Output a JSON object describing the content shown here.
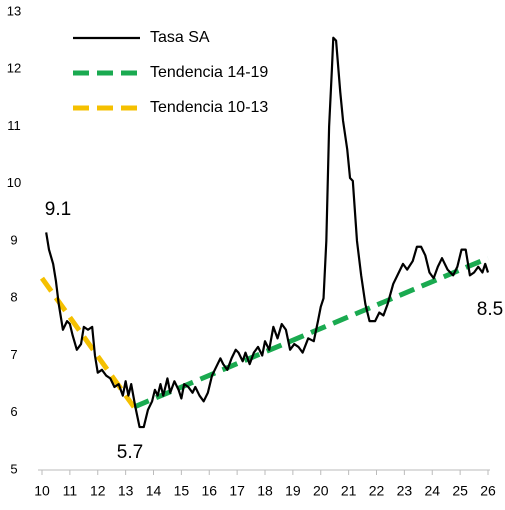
{
  "chart_data": {
    "type": "line",
    "series": [
      {
        "name": "Tasa SA",
        "color": "#000000",
        "dash": false,
        "x": [
          10.15,
          10.25,
          10.4,
          10.5,
          10.6,
          10.75,
          10.9,
          11.0,
          11.1,
          11.25,
          11.4,
          11.5,
          11.65,
          11.8,
          11.9,
          12.0,
          12.15,
          12.3,
          12.45,
          12.6,
          12.75,
          12.9,
          13.0,
          13.1,
          13.2,
          13.35,
          13.5,
          13.65,
          13.8,
          13.95,
          14.05,
          14.15,
          14.25,
          14.35,
          14.5,
          14.6,
          14.75,
          14.9,
          15.0,
          15.1,
          15.25,
          15.4,
          15.5,
          15.65,
          15.8,
          15.95,
          16.1,
          16.25,
          16.4,
          16.5,
          16.65,
          16.8,
          16.95,
          17.05,
          17.2,
          17.3,
          17.45,
          17.6,
          17.75,
          17.9,
          18.0,
          18.15,
          18.3,
          18.45,
          18.6,
          18.75,
          18.9,
          19.05,
          19.2,
          19.35,
          19.55,
          19.75,
          19.9,
          20.0,
          20.1,
          20.2,
          20.3,
          20.4,
          20.45,
          20.55,
          20.7,
          20.8,
          20.95,
          21.05,
          21.15,
          21.3,
          21.45,
          21.6,
          21.75,
          21.95,
          22.1,
          22.25,
          22.4,
          22.6,
          22.8,
          22.95,
          23.1,
          23.3,
          23.45,
          23.6,
          23.75,
          23.9,
          24.05,
          24.2,
          24.35,
          24.55,
          24.75,
          24.9,
          25.05,
          25.2,
          25.35,
          25.5,
          25.65,
          25.8,
          25.9,
          26.0
        ],
        "values": [
          9.15,
          8.85,
          8.6,
          8.3,
          7.9,
          7.45,
          7.6,
          7.55,
          7.35,
          7.1,
          7.2,
          7.5,
          7.45,
          7.5,
          7.0,
          6.7,
          6.75,
          6.65,
          6.6,
          6.45,
          6.5,
          6.3,
          6.55,
          6.3,
          6.5,
          6.1,
          5.75,
          5.75,
          6.05,
          6.2,
          6.4,
          6.3,
          6.5,
          6.3,
          6.6,
          6.35,
          6.55,
          6.4,
          6.25,
          6.5,
          6.45,
          6.35,
          6.45,
          6.3,
          6.2,
          6.35,
          6.65,
          6.8,
          6.95,
          6.85,
          6.75,
          6.95,
          7.1,
          7.05,
          6.9,
          7.05,
          6.85,
          7.05,
          7.15,
          7.0,
          7.25,
          7.1,
          7.5,
          7.3,
          7.55,
          7.45,
          7.1,
          7.2,
          7.15,
          7.05,
          7.3,
          7.25,
          7.6,
          7.85,
          8.0,
          9.0,
          11.0,
          12.0,
          12.55,
          12.5,
          11.6,
          11.1,
          10.6,
          10.1,
          10.05,
          9.0,
          8.4,
          7.9,
          7.6,
          7.6,
          7.75,
          7.7,
          7.9,
          8.25,
          8.45,
          8.6,
          8.5,
          8.65,
          8.9,
          8.9,
          8.75,
          8.45,
          8.35,
          8.55,
          8.7,
          8.5,
          8.4,
          8.55,
          8.85,
          8.85,
          8.4,
          8.45,
          8.55,
          8.45,
          8.6,
          8.45
        ]
      },
      {
        "name": "Tendencia 14-19",
        "color": "#1aaa50",
        "dash": true,
        "x": [
          13.3,
          26.0
        ],
        "values": [
          6.1,
          8.7
        ]
      },
      {
        "name": "Tendencia 10-13",
        "color": "#f5c000",
        "dash": true,
        "x": [
          10.0,
          13.3
        ],
        "values": [
          8.35,
          6.1
        ]
      }
    ],
    "annotations": [
      "9.1",
      "5.7",
      "8.5"
    ],
    "xlim": [
      10,
      26
    ],
    "xticks": [
      10,
      11,
      12,
      13,
      14,
      15,
      16,
      17,
      18,
      19,
      20,
      21,
      22,
      23,
      24,
      25,
      26
    ],
    "ylim": [
      5,
      13
    ],
    "yticks": [
      5,
      6,
      7,
      8,
      9,
      10,
      11,
      12,
      13
    ]
  }
}
